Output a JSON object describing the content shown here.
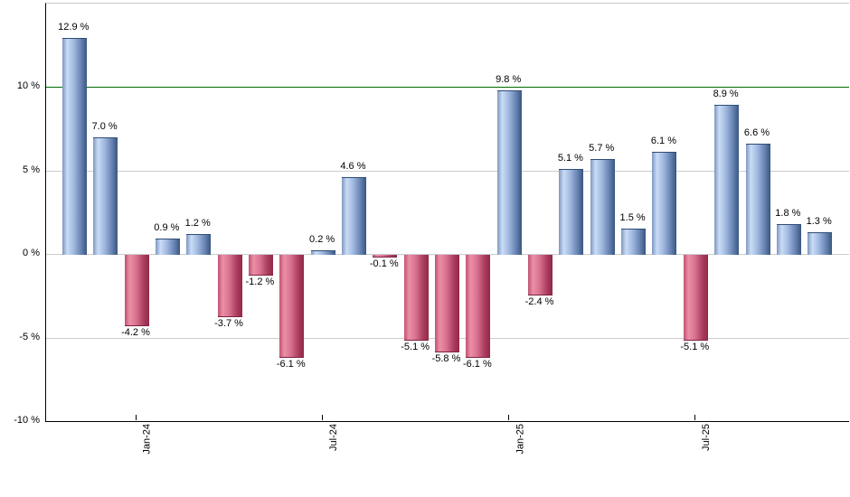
{
  "chart_data": {
    "type": "bar",
    "title": "",
    "xlabel": "",
    "ylabel": "",
    "values": [
      12.9,
      7.0,
      -4.2,
      0.9,
      1.2,
      -3.7,
      -1.2,
      -6.1,
      0.2,
      4.6,
      -0.1,
      -5.1,
      -5.8,
      -6.1,
      9.8,
      -2.4,
      5.1,
      5.7,
      1.5,
      6.1,
      -5.1,
      8.9,
      6.6,
      1.8,
      1.3
    ],
    "bar_labels": [
      "12.9 %",
      "7.0 %",
      "-4.2 %",
      "0.9 %",
      "1.2 %",
      "-3.7 %",
      "-1.2 %",
      "-6.1 %",
      "0.2 %",
      "4.6 %",
      "-0.1 %",
      "-5.1 %",
      "-5.8 %",
      "-6.1 %",
      "9.8 %",
      "-2.4 %",
      "5.1 %",
      "5.7 %",
      "1.5 %",
      "6.1 %",
      "-5.1 %",
      "8.9 %",
      "6.6 %",
      "1.8 %",
      "1.3 %"
    ],
    "x_tick_bar_indices": [
      2,
      8,
      14,
      20
    ],
    "x_tick_labels": [
      "Jan-24",
      "Jul-24",
      "Jan-25",
      "Jul-25"
    ],
    "y_tick_values": [
      10,
      5,
      0,
      -5,
      -10
    ],
    "y_tick_labels": [
      "10 %",
      "5 %",
      "0 %",
      "-5 %",
      "-10 %"
    ],
    "ylim": [
      -10,
      15
    ],
    "grid": true,
    "legend": null,
    "threshold_line": {
      "value": 10,
      "color": "#016c01"
    },
    "colors": {
      "positive_gradient": [
        "#7e97c2",
        "#cadcf5",
        "#a3bbe2",
        "#6480af",
        "#38577f"
      ],
      "negative_gradient": [
        "#bf5273",
        "#ec8fa5",
        "#da7492",
        "#ab3c5f",
        "#8f2946"
      ],
      "gradient_stops": [
        0,
        20,
        45,
        78,
        100
      ],
      "gridline": "#cccccc",
      "axis": "#000000",
      "label_text": "#000000",
      "background": "#ffffff"
    }
  }
}
